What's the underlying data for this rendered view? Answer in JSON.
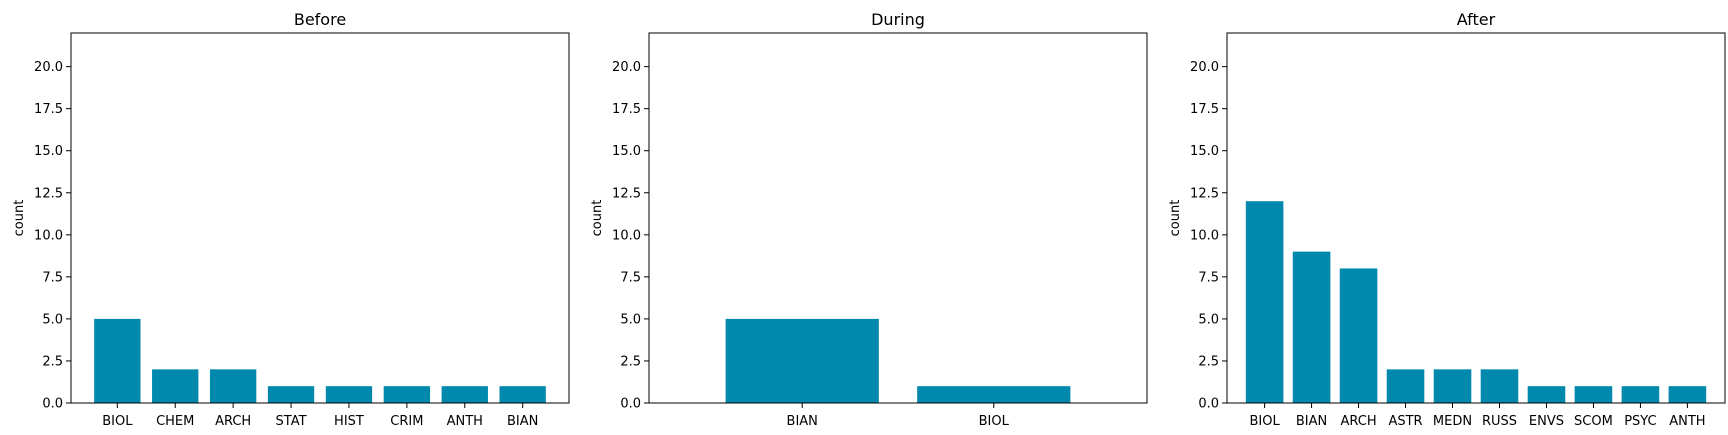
{
  "colors": {
    "bar": "#0088ad",
    "axis": "#000000"
  },
  "chart_data": [
    {
      "type": "bar",
      "title": "Before",
      "xlabel": "",
      "ylabel": "count",
      "ylim": [
        0,
        22
      ],
      "yticks": [
        0.0,
        2.5,
        5.0,
        7.5,
        10.0,
        12.5,
        15.0,
        17.5,
        20.0
      ],
      "categories": [
        "BIOL",
        "CHEM",
        "ARCH",
        "STAT",
        "HIST",
        "CRIM",
        "ANTH",
        "BIAN"
      ],
      "values": [
        5,
        2,
        2,
        1,
        1,
        1,
        1,
        1
      ],
      "grid": false
    },
    {
      "type": "bar",
      "title": "During",
      "xlabel": "",
      "ylabel": "count",
      "ylim": [
        0,
        22
      ],
      "yticks": [
        0.0,
        2.5,
        5.0,
        7.5,
        10.0,
        12.5,
        15.0,
        17.5,
        20.0
      ],
      "categories": [
        "BIAN",
        "BIOL"
      ],
      "values": [
        5,
        1
      ],
      "grid": false
    },
    {
      "type": "bar",
      "title": "After",
      "xlabel": "",
      "ylabel": "count",
      "ylim": [
        0,
        22
      ],
      "yticks": [
        0.0,
        2.5,
        5.0,
        7.5,
        10.0,
        12.5,
        15.0,
        17.5,
        20.0
      ],
      "categories": [
        "BIOL",
        "BIAN",
        "ARCH",
        "ASTR",
        "MEDN",
        "RUSS",
        "ENVS",
        "SCOM",
        "PSYC",
        "ANTH"
      ],
      "values": [
        12,
        9,
        8,
        2,
        2,
        2,
        1,
        1,
        1,
        1
      ],
      "grid": false
    }
  ]
}
